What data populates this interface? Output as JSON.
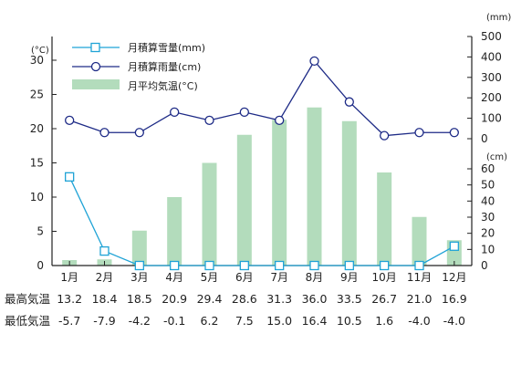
{
  "chart_data": {
    "type": "bar+line",
    "categories": [
      "1月",
      "2月",
      "3月",
      "4月",
      "5月",
      "6月",
      "7月",
      "8月",
      "9月",
      "10月",
      "11月",
      "12月"
    ],
    "series": [
      {
        "name": "月積算雪量(mm)",
        "type": "line",
        "axis": "right-upper",
        "marker": "square",
        "color": "#1fa3d6",
        "values": [
          55,
          9,
          0,
          0,
          0,
          0,
          0,
          0,
          0,
          0,
          0,
          12
        ]
      },
      {
        "name": "月積算雨量(cm)",
        "type": "line",
        "axis": "right-upper",
        "marker": "circle",
        "color": "#1d2a86",
        "values": [
          90,
          30,
          30,
          130,
          90,
          130,
          90,
          380,
          180,
          15,
          30,
          30
        ]
      },
      {
        "name": "月平均気温(°C)",
        "type": "bar",
        "axis": "left",
        "color": "#b3dcbc",
        "values": [
          0.8,
          0.9,
          5.1,
          10.0,
          15.0,
          19.1,
          21.3,
          23.1,
          21.1,
          13.6,
          7.1,
          3.7
        ]
      }
    ],
    "left_axis": {
      "unit": "(°C)",
      "ticks": [
        "0",
        "5",
        "10",
        "15",
        "20",
        "25",
        "30"
      ],
      "ylim": [
        0,
        33
      ]
    },
    "right_upper_axis": {
      "unit": "(mm)",
      "ticks": [
        "0",
        "100",
        "200",
        "300",
        "400",
        "500"
      ],
      "ylim": [
        0,
        500
      ]
    },
    "right_lower_axis": {
      "unit": "(cm)",
      "ticks": [
        "0",
        "10",
        "20",
        "30",
        "40",
        "50",
        "60"
      ],
      "ylim": [
        0,
        60
      ]
    },
    "table": {
      "rows": [
        {
          "label": "最高気温",
          "values": [
            "13.2",
            "18.4",
            "18.5",
            "20.9",
            "29.4",
            "28.6",
            "31.3",
            "36.0",
            "33.5",
            "26.7",
            "21.0",
            "16.9"
          ]
        },
        {
          "label": "最低気温",
          "values": [
            "-5.7",
            "-7.9",
            "-4.2",
            "-0.1",
            "6.2",
            "7.5",
            "15.0",
            "16.4",
            "10.5",
            "1.6",
            "-4.0",
            "-4.0"
          ]
        }
      ]
    }
  }
}
